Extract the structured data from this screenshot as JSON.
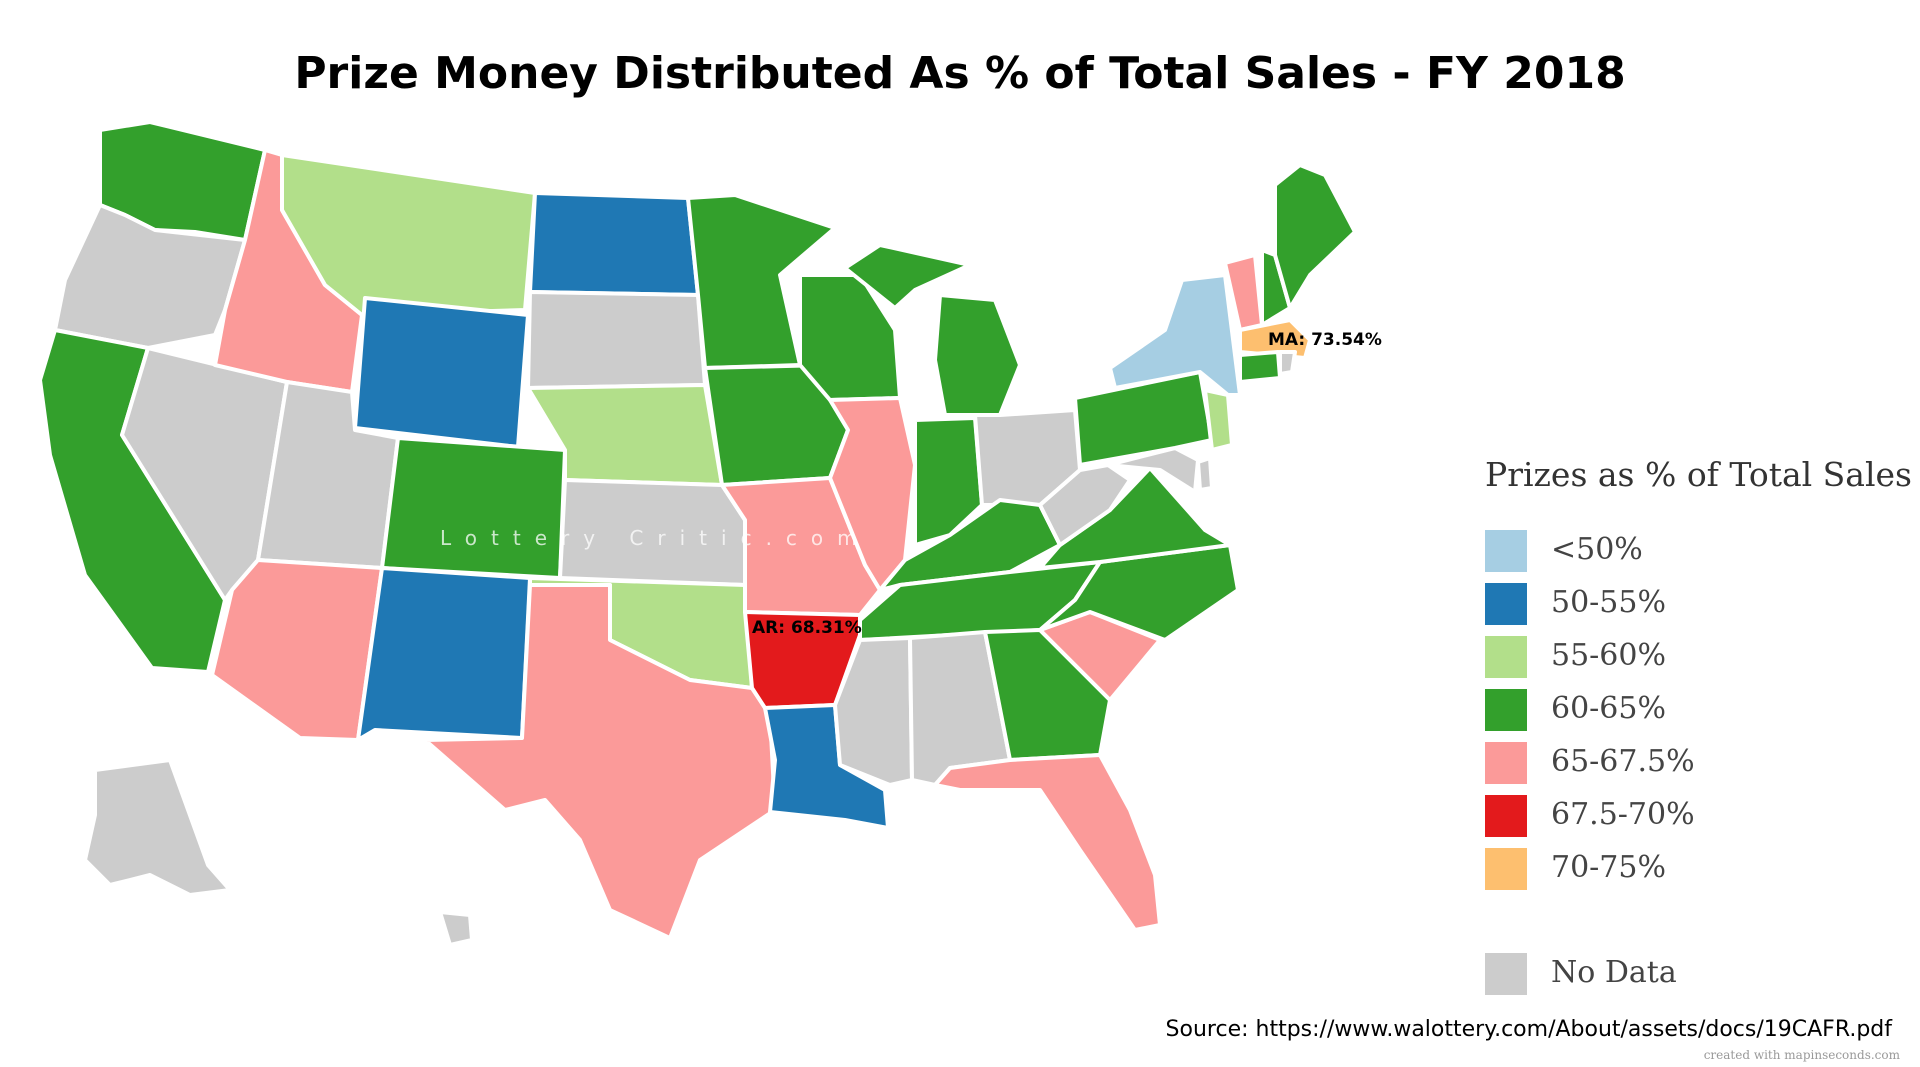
{
  "title": "Prize Money Distributed As % of Total Sales - FY 2018",
  "watermark": "Lottery Critic.com",
  "annotations": {
    "ar": "AR: 68.31%",
    "ma": "MA: 73.54%"
  },
  "legend": {
    "title": "Prizes as % of Total Sales",
    "items": [
      {
        "label": "<50%",
        "color": "#a6cee3"
      },
      {
        "label": "50-55%",
        "color": "#1f78b4"
      },
      {
        "label": "55-60%",
        "color": "#b2df8a"
      },
      {
        "label": "60-65%",
        "color": "#33a02c"
      },
      {
        "label": "65-67.5%",
        "color": "#fb9a99"
      },
      {
        "label": "67.5-70%",
        "color": "#e31a1c"
      },
      {
        "label": "70-75%",
        "color": "#fdbf6f"
      }
    ],
    "no_data": {
      "label": "No Data",
      "color": "#cccccc"
    }
  },
  "source": "Source: https://www.walottery.com/About/assets/docs/19CAFR.pdf",
  "credit": "created with mapinseconds.com"
}
